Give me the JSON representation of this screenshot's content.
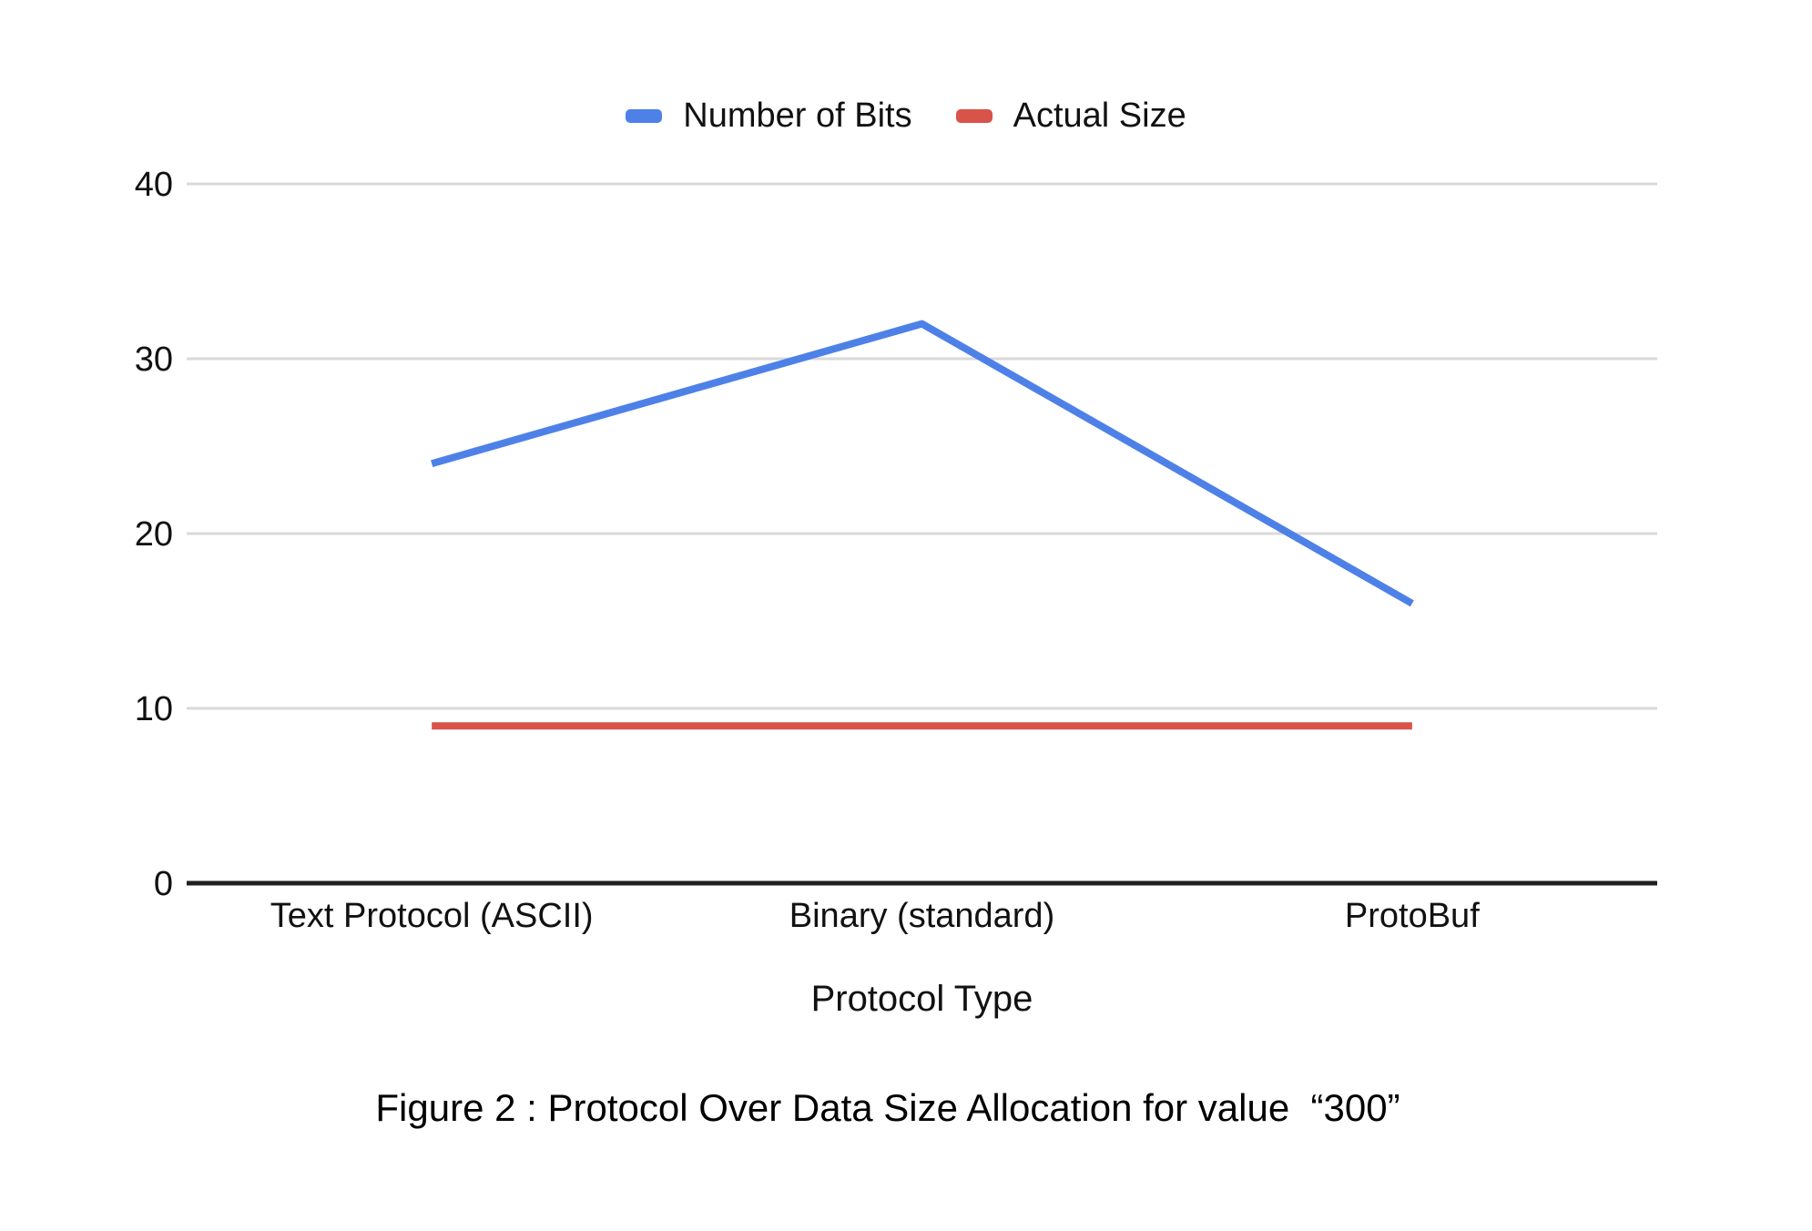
{
  "figure": {
    "caption": "Figure 2 : Protocol Over Data Size Allocation for value  “300”"
  },
  "chart_data": {
    "type": "line",
    "categories": [
      "Text Protocol (ASCII)",
      "Binary (standard)",
      "ProtoBuf"
    ],
    "series": [
      {
        "name": "Number of Bits",
        "values": [
          24,
          32,
          16
        ],
        "color": "#4e81e8"
      },
      {
        "name": "Actual Size",
        "values": [
          9,
          9,
          9
        ],
        "color": "#d8534a"
      }
    ],
    "xlabel": "Protocol Type",
    "ylim": [
      0,
      40
    ],
    "yticks": [
      0,
      10,
      20,
      30,
      40
    ],
    "grid": true,
    "legend_position": "top",
    "grid_color": "#d9d9d9",
    "axis_color": "#1f1f1f",
    "text_color": "#111111"
  }
}
